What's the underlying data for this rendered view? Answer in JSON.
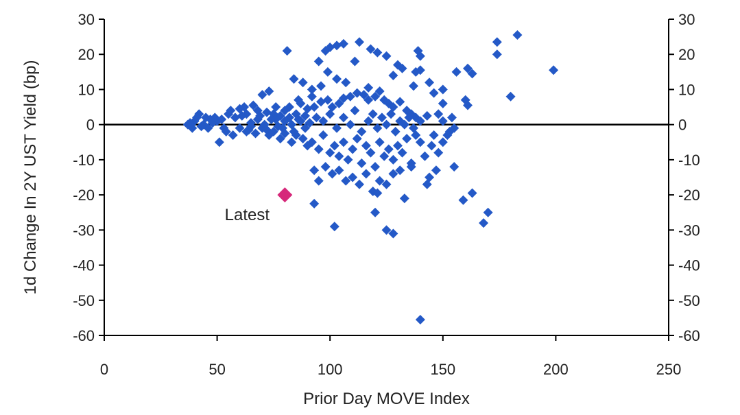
{
  "chart_data": {
    "type": "scatter",
    "xlabel": "Prior Day MOVE Index",
    "ylabel": "1d Change In 2Y UST Yield (bp)",
    "xlim": [
      0,
      250
    ],
    "ylim": [
      -60,
      30
    ],
    "x_ticks": [
      0,
      50,
      100,
      150,
      200,
      250
    ],
    "y_ticks": [
      30,
      20,
      10,
      0,
      -10,
      -20,
      -30,
      -40,
      -50,
      -60
    ],
    "x_tick_labels": [
      "0",
      "50",
      "100",
      "150",
      "200",
      "250"
    ],
    "y_tick_labels": [
      "30",
      "20",
      "10",
      "0",
      "-10",
      "-20",
      "-30",
      "-40",
      "-50",
      "-60"
    ],
    "grid": false,
    "zero_line": true,
    "right_axis_mirror": true,
    "marker": "diamond",
    "colors": {
      "points": "#2459c7",
      "latest": "#d6287a",
      "axis": "#000000"
    },
    "series": [
      {
        "values": [
          [
            183,
            25.5
          ],
          [
            174,
            23.5
          ],
          [
            174,
            20
          ],
          [
            199,
            15.5
          ],
          [
            180,
            8
          ],
          [
            161,
            16
          ],
          [
            163,
            14.5
          ],
          [
            156,
            15
          ],
          [
            160,
            7
          ],
          [
            161,
            5.5
          ],
          [
            81,
            21
          ],
          [
            98,
            21
          ],
          [
            100,
            22
          ],
          [
            103,
            22.5
          ],
          [
            106,
            23
          ],
          [
            113,
            23.5
          ],
          [
            118,
            21.5
          ],
          [
            121,
            20.5
          ],
          [
            125,
            19.5
          ],
          [
            139,
            21
          ],
          [
            140,
            19.5
          ],
          [
            130,
            17
          ],
          [
            132,
            16
          ],
          [
            138,
            15
          ],
          [
            95,
            18
          ],
          [
            99,
            15
          ],
          [
            103,
            13
          ],
          [
            111,
            18
          ],
          [
            84,
            13
          ],
          [
            88,
            12
          ],
          [
            92,
            10
          ],
          [
            70,
            8.5
          ],
          [
            73,
            9.5
          ],
          [
            76,
            5
          ],
          [
            144,
            12
          ],
          [
            146,
            9
          ],
          [
            150,
            10
          ],
          [
            150,
            6
          ],
          [
            148,
            3
          ],
          [
            143,
            2.5
          ],
          [
            140,
            15.5
          ],
          [
            137,
            11
          ],
          [
            128,
            14
          ],
          [
            117,
            10.5
          ],
          [
            107,
            12
          ],
          [
            96,
            11
          ],
          [
            92,
            8
          ],
          [
            86,
            7
          ],
          [
            63,
            3
          ],
          [
            58,
            2
          ],
          [
            55,
            3
          ],
          [
            52,
            1.5
          ],
          [
            50,
            1
          ],
          [
            48,
            0.5
          ],
          [
            45,
            2
          ],
          [
            42,
            3
          ],
          [
            40,
            1
          ],
          [
            38,
            0.5
          ],
          [
            37,
            0
          ],
          [
            39,
            -1
          ],
          [
            41,
            2
          ],
          [
            44,
            0
          ],
          [
            46,
            -1
          ],
          [
            49,
            2
          ],
          [
            53,
            -1
          ],
          [
            56,
            4
          ],
          [
            60,
            4.5
          ],
          [
            62,
            5
          ],
          [
            66,
            5.5
          ],
          [
            68,
            4
          ],
          [
            72,
            3.5
          ],
          [
            75,
            3
          ],
          [
            78,
            2.5
          ],
          [
            80,
            4
          ],
          [
            82,
            5
          ],
          [
            85,
            3
          ],
          [
            87,
            6
          ],
          [
            90,
            4.5
          ],
          [
            93,
            5
          ],
          [
            96,
            6.5
          ],
          [
            99,
            7
          ],
          [
            101,
            5
          ],
          [
            104,
            6
          ],
          [
            106,
            7.5
          ],
          [
            109,
            8
          ],
          [
            112,
            9
          ],
          [
            115,
            8.5
          ],
          [
            117,
            7
          ],
          [
            120,
            8
          ],
          [
            122,
            9.5
          ],
          [
            124,
            7
          ],
          [
            126,
            6
          ],
          [
            128,
            5
          ],
          [
            131,
            6.5
          ],
          [
            134,
            4
          ],
          [
            136,
            3
          ],
          [
            138,
            2
          ],
          [
            140,
            1
          ],
          [
            60,
            -1
          ],
          [
            63,
            -2
          ],
          [
            65,
            -0.5
          ],
          [
            67,
            -2.5
          ],
          [
            70,
            -1
          ],
          [
            73,
            -3
          ],
          [
            75,
            -2
          ],
          [
            78,
            -4
          ],
          [
            80,
            -2.5
          ],
          [
            83,
            -5
          ],
          [
            85,
            -3
          ],
          [
            88,
            -4
          ],
          [
            90,
            -6
          ],
          [
            92,
            -5
          ],
          [
            95,
            -7
          ],
          [
            97,
            -3
          ],
          [
            100,
            -8
          ],
          [
            102,
            -6
          ],
          [
            104,
            -9
          ],
          [
            106,
            -5
          ],
          [
            108,
            -10
          ],
          [
            110,
            -7
          ],
          [
            112,
            -4
          ],
          [
            114,
            -11
          ],
          [
            116,
            -6
          ],
          [
            118,
            -8
          ],
          [
            120,
            -12
          ],
          [
            122,
            -5
          ],
          [
            124,
            -9
          ],
          [
            126,
            -7
          ],
          [
            128,
            -10
          ],
          [
            130,
            -6
          ],
          [
            132,
            -8
          ],
          [
            134,
            -4
          ],
          [
            136,
            -11
          ],
          [
            138,
            -3
          ],
          [
            140,
            -5
          ],
          [
            94,
            2
          ],
          [
            97,
            1
          ],
          [
            100,
            3
          ],
          [
            103,
            -1
          ],
          [
            106,
            2
          ],
          [
            109,
            0
          ],
          [
            111,
            4
          ],
          [
            114,
            -2
          ],
          [
            117,
            1
          ],
          [
            119,
            3
          ],
          [
            121,
            -1
          ],
          [
            123,
            2
          ],
          [
            125,
            0
          ],
          [
            127,
            3
          ],
          [
            129,
            -2
          ],
          [
            131,
            1
          ],
          [
            133,
            0
          ],
          [
            135,
            2
          ],
          [
            137,
            -1
          ],
          [
            93,
            -13
          ],
          [
            95,
            -16
          ],
          [
            98,
            -12
          ],
          [
            101,
            -14
          ],
          [
            104,
            -13
          ],
          [
            107,
            -16
          ],
          [
            110,
            -15
          ],
          [
            113,
            -17
          ],
          [
            116,
            -14
          ],
          [
            119,
            -19
          ],
          [
            122,
            -16
          ],
          [
            125,
            -17
          ],
          [
            128,
            -14
          ],
          [
            131,
            -13
          ],
          [
            121,
            -19.5
          ],
          [
            120,
            -25
          ],
          [
            125,
            -30
          ],
          [
            128,
            -31
          ],
          [
            102,
            -29
          ],
          [
            93,
            -22.5
          ],
          [
            133,
            -21
          ],
          [
            136,
            -12
          ],
          [
            143,
            -17
          ],
          [
            144,
            -15
          ],
          [
            147,
            -13
          ],
          [
            150,
            -5
          ],
          [
            152,
            -3
          ],
          [
            155,
            -1
          ],
          [
            154,
            2
          ],
          [
            148,
            -8
          ],
          [
            155,
            -12
          ],
          [
            159,
            -21.5
          ],
          [
            163,
            -19.5
          ],
          [
            168,
            -28
          ],
          [
            170,
            -25
          ],
          [
            140,
            -55.5
          ],
          [
            145,
            -6
          ],
          [
            142,
            -9
          ],
          [
            146,
            -3
          ],
          [
            150,
            1
          ],
          [
            153,
            -2
          ],
          [
            65,
            0.5
          ],
          [
            68,
            1.5
          ],
          [
            71,
            0
          ],
          [
            74,
            1.5
          ],
          [
            77,
            -0.5
          ],
          [
            80,
            1
          ],
          [
            83,
            0
          ],
          [
            86,
            1.5
          ],
          [
            89,
            -1
          ],
          [
            91,
            0.5
          ],
          [
            43,
            -0.5
          ],
          [
            47,
            1.5
          ],
          [
            51,
            -5
          ],
          [
            54,
            -2
          ],
          [
            57,
            -3
          ],
          [
            61,
            2.5
          ],
          [
            64,
            -1.5
          ],
          [
            69,
            2.5
          ],
          [
            72,
            -1.5
          ],
          [
            76,
            1.5
          ],
          [
            79,
            -1
          ],
          [
            82,
            2
          ],
          [
            84,
            -2
          ],
          [
            87,
            1
          ],
          [
            89,
            2.5
          ]
        ]
      },
      {
        "name": "Latest",
        "values": [
          [
            80,
            -20
          ]
        ]
      }
    ],
    "annotations": [
      {
        "text": "Latest",
        "x": 80,
        "y": -20
      }
    ]
  }
}
